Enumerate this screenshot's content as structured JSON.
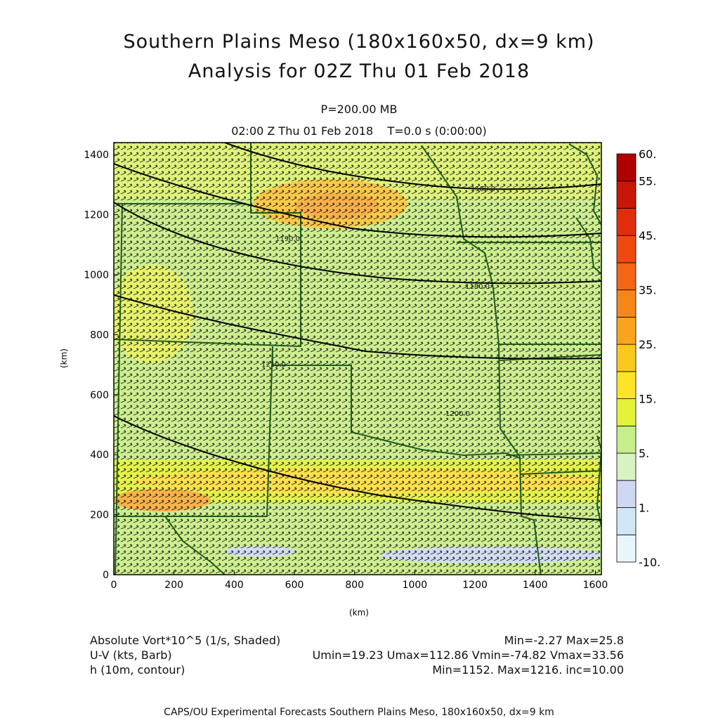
{
  "header": {
    "title_line1": "Southern Plains Meso (180x160x50, dx=9 km)",
    "title_line2": "Analysis for 02Z Thu 01 Feb 2018",
    "level": "P=200.00 MB",
    "time": "02:00 Z Thu 01 Feb 2018    T=0.0 s (0:00:00)"
  },
  "axes": {
    "x_label": "(km)",
    "y_label": "(km)",
    "x_range": [
      0,
      1620
    ],
    "y_range": [
      0,
      1440
    ],
    "x_ticks": [
      "0",
      "200",
      "400",
      "600",
      "800",
      "1000",
      "1200",
      "1400",
      "1600"
    ],
    "y_ticks": [
      "0",
      "200",
      "400",
      "600",
      "800",
      "1000",
      "1200",
      "1400"
    ]
  },
  "colorbar": {
    "levels": [
      "-10.",
      "1.",
      "5.",
      "15.",
      "25.",
      "35.",
      "45.",
      "55.",
      "60."
    ],
    "colors": [
      "#e8f6fb",
      "#d2e7f5",
      "#cfd8f2",
      "#d8f3c2",
      "#c6ee8a",
      "#e4f23a",
      "#fde426",
      "#fbc81e",
      "#f9a41c",
      "#f7861a",
      "#f26614",
      "#ee4a10",
      "#e12d0c",
      "#c81608",
      "#b00000"
    ]
  },
  "contours": {
    "labels": [
      "1180.0",
      "1190.0",
      "1180.0",
      "1200.0",
      "1210.0"
    ]
  },
  "legend": {
    "line1_left": "Absolute Vort*10^5 (1/s, Shaded)",
    "line1_right": "Min=-2.27  Max=25.8",
    "line2_left": "U-V (kts, Barb)",
    "line2_right": "Umin=19.23  Umax=112.86  Vmin=-74.82  Vmax=33.56",
    "line3_left": "h (10m, contour)",
    "line3_right": "Min=1152.  Max=1216.  inc=10.00"
  },
  "footer": "CAPS/OU Experimental Forecasts  Southern Plains Meso, 180x160x50, dx=9 km"
}
